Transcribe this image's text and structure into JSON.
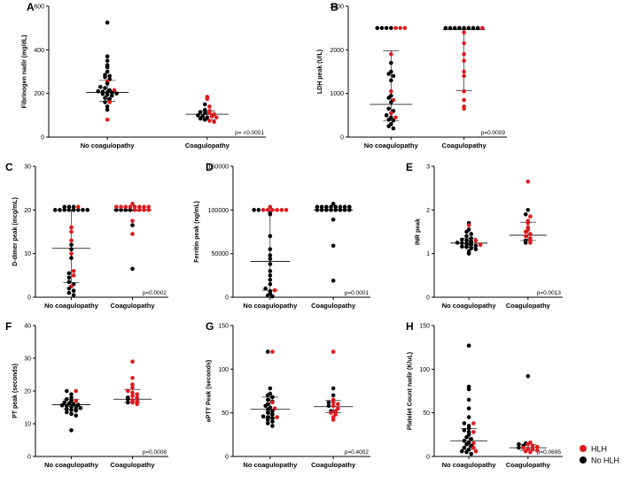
{
  "legend": {
    "position": "bottom-right",
    "items": [
      {
        "label": "HLH",
        "color": "#e0191c"
      },
      {
        "label": "No HLH",
        "color": "#000000"
      }
    ]
  },
  "colors": {
    "hlh": "#e0191c",
    "no_hlh": "#000000",
    "axis": "#000000",
    "summary_line": "#000000"
  },
  "chart_data": [
    {
      "panel": "A",
      "type": "scatter",
      "ylabel": "Fibrinogen nadir (mg/dL)",
      "categories": [
        "No coagulopathy",
        "Coagulopathy"
      ],
      "ylim": [
        0,
        600
      ],
      "yticks": [
        0,
        200,
        400,
        600
      ],
      "pvalue": "p= <0.0001",
      "groups": [
        {
          "median": 205,
          "iqr": [
            165,
            260
          ],
          "black": [
            525,
            370,
            350,
            330,
            320,
            300,
            285,
            280,
            275,
            265,
            245,
            230,
            225,
            215,
            210,
            208,
            205,
            203,
            200,
            198,
            195,
            190,
            180,
            175,
            160,
            140,
            125
          ],
          "red": [
            255,
            215,
            160,
            80
          ]
        },
        {
          "median": 105,
          "iqr": [
            80,
            120
          ],
          "black": [
            150,
            125,
            115,
            110,
            100,
            95,
            90,
            85,
            80
          ],
          "red": [
            185,
            175,
            140,
            120,
            110,
            105,
            95,
            90,
            75,
            70
          ]
        }
      ]
    },
    {
      "panel": "B",
      "type": "scatter",
      "ylabel": "LDH peak (U/L)",
      "categories": [
        "No coagulopathy",
        "Coagulopathy"
      ],
      "ylim": [
        0,
        3000
      ],
      "yticks": [
        0,
        1000,
        2000,
        3000
      ],
      "pvalue": "p=0.0009",
      "groups": [
        {
          "median": 750,
          "iqr": [
            380,
            1980
          ],
          "black": [
            2500,
            2500,
            2500,
            2500,
            1700,
            1500,
            1450,
            1400,
            1300,
            950,
            900,
            800,
            650,
            600,
            500,
            450,
            400,
            380,
            300,
            250,
            200
          ],
          "red": [
            2500,
            2500,
            2500,
            1900,
            1050,
            850,
            550,
            450
          ]
        },
        {
          "median": 2460,
          "iqr": [
            1060,
            2460
          ],
          "black": [
            2500,
            2500,
            2500,
            2500,
            2500,
            2500,
            2500,
            2500
          ],
          "red": [
            2500,
            2400,
            2150,
            1900,
            1750,
            1500,
            1400,
            1050,
            850,
            700,
            650
          ]
        }
      ]
    },
    {
      "panel": "C",
      "type": "scatter",
      "ylabel": "D-dimer peak (mcg/mL)",
      "categories": [
        "No coagulopathy",
        "Coagulopathy"
      ],
      "ylim": [
        0,
        30
      ],
      "yticks": [
        0,
        10,
        20,
        30
      ],
      "pvalue": "p=0.0002",
      "groups": [
        {
          "median": 11.2,
          "iqr": [
            3.3,
            20
          ],
          "black": [
            20,
            20,
            20,
            20,
            20,
            20,
            20,
            20,
            20,
            20,
            20,
            12,
            11,
            9,
            5.5,
            4.5,
            3.5,
            3,
            2,
            1.5,
            1,
            0.5
          ],
          "red": [
            20,
            16,
            15,
            13,
            10,
            6,
            5,
            2.5
          ]
        },
        {
          "median": 20,
          "iqr": [
            19.8,
            20
          ],
          "black": [
            20,
            20,
            20,
            20,
            16.5,
            6.5
          ],
          "red": [
            20,
            20,
            20,
            20,
            20,
            20,
            20,
            20,
            20,
            20,
            20,
            20,
            20,
            17.5,
            14.5
          ]
        }
      ]
    },
    {
      "panel": "D",
      "type": "scatter",
      "ylabel": "Ferritin peak (ng/mL)",
      "categories": [
        "No coagulopathy",
        "Coagulopathy"
      ],
      "ylim": [
        0,
        150000
      ],
      "yticks": [
        0,
        50000,
        100000,
        150000
      ],
      "pvalue": "p=0.0001",
      "groups": [
        {
          "median": 41000,
          "iqr": [
            8000,
            100000
          ],
          "black": [
            100000,
            100000,
            96000,
            95000,
            70000,
            55000,
            48000,
            44000,
            38000,
            30000,
            25000,
            20000,
            15000,
            10000,
            7000,
            4000,
            2000,
            1000
          ],
          "red": [
            100000,
            100000,
            100000,
            100000,
            100000,
            100000,
            100000,
            8000
          ]
        },
        {
          "median": 100000,
          "iqr": [
            100000,
            100000
          ],
          "black": [
            100000,
            100000,
            100000,
            100000,
            100000,
            100000,
            100000,
            100000,
            100000,
            100000,
            100000,
            100000,
            100000,
            100000,
            100000,
            100000,
            100000,
            89000,
            59000,
            19000
          ],
          "red": []
        }
      ]
    },
    {
      "panel": "E",
      "type": "scatter",
      "ylabel": "INR peak",
      "categories": [
        "No coagulopathy",
        "Coagulopathy"
      ],
      "ylim": [
        0,
        3
      ],
      "yticks": [
        0,
        1,
        2,
        3
      ],
      "pvalue": "p=0.0013",
      "groups": [
        {
          "median": 1.24,
          "iqr": [
            1.15,
            1.35
          ],
          "black": [
            1.7,
            1.55,
            1.5,
            1.45,
            1.4,
            1.35,
            1.32,
            1.3,
            1.28,
            1.25,
            1.24,
            1.22,
            1.2,
            1.18,
            1.16,
            1.15,
            1.12,
            1.1,
            1.05,
            1.0
          ],
          "red": [
            1.65,
            1.3,
            1.2
          ]
        },
        {
          "median": 1.42,
          "iqr": [
            1.3,
            1.72
          ],
          "black": [
            2.0,
            1.9,
            1.3,
            1.25
          ],
          "red": [
            2.65,
            1.85,
            1.75,
            1.7,
            1.6,
            1.55,
            1.5,
            1.45,
            1.4,
            1.35,
            1.3,
            1.25
          ]
        }
      ]
    },
    {
      "panel": "F",
      "type": "scatter",
      "ylabel": "PT peak (seconds)",
      "categories": [
        "No coagulopathy",
        "Coagulopathy"
      ],
      "ylim": [
        0,
        40
      ],
      "yticks": [
        0,
        10,
        20,
        30,
        40
      ],
      "pvalue": "p=0.0008",
      "groups": [
        {
          "median": 15.8,
          "iqr": [
            14.5,
            17.5
          ],
          "black": [
            20,
            19,
            18,
            17.5,
            17,
            16.5,
            16.2,
            16,
            15.8,
            15.6,
            15.4,
            15.2,
            15,
            14.8,
            14.5,
            14.2,
            14,
            13.5,
            13,
            12.5,
            8
          ],
          "red": [
            20,
            17
          ]
        },
        {
          "median": 17.5,
          "iqr": [
            16.5,
            20.5
          ],
          "black": [
            18,
            17.5,
            16.5
          ],
          "red": [
            29,
            24,
            22,
            21,
            20,
            19.5,
            19,
            18.5,
            18,
            17.2,
            17,
            16.5,
            16
          ]
        }
      ]
    },
    {
      "panel": "G",
      "type": "scatter",
      "ylabel": "aPTT Peak (seconds)",
      "categories": [
        "No coagulopathy",
        "Coagulopathy"
      ],
      "ylim": [
        0,
        150
      ],
      "yticks": [
        0,
        50,
        100,
        150
      ],
      "pvalue": "p=0.4002",
      "groups": [
        {
          "median": 54,
          "iqr": [
            44,
            68
          ],
          "black": [
            120,
            78,
            72,
            70,
            68,
            65,
            63,
            60,
            58,
            56,
            54,
            52,
            50,
            48,
            46,
            45,
            44,
            42,
            40,
            38,
            35
          ],
          "red": [
            120,
            62,
            55,
            45
          ]
        },
        {
          "median": 57,
          "iqr": [
            50,
            64
          ],
          "black": [
            78,
            70,
            62,
            58,
            52
          ],
          "red": [
            120,
            65,
            62,
            60,
            58,
            55,
            52,
            50,
            48,
            45,
            42
          ]
        }
      ]
    },
    {
      "panel": "H",
      "type": "scatter",
      "ylabel": "Platelet Count nadir (K/uL)",
      "categories": [
        "No coagulopathy",
        "Coagulopathy"
      ],
      "ylim": [
        0,
        150
      ],
      "yticks": [
        0,
        50,
        100,
        150
      ],
      "pvalue": "p=0.0695",
      "groups": [
        {
          "median": 18,
          "iqr": [
            8,
            32
          ],
          "black": [
            127,
            80,
            77,
            65,
            55,
            45,
            38,
            35,
            32,
            30,
            28,
            25,
            22,
            20,
            18,
            16,
            14,
            12,
            10,
            8,
            6,
            5,
            3
          ],
          "red": [
            38,
            28,
            15,
            10,
            6
          ]
        },
        {
          "median": 10,
          "iqr": [
            7,
            14
          ],
          "black": [
            92,
            15,
            14,
            12,
            10
          ],
          "red": [
            16,
            14,
            12,
            11,
            10,
            9,
            8,
            7,
            6,
            5
          ]
        }
      ]
    }
  ]
}
